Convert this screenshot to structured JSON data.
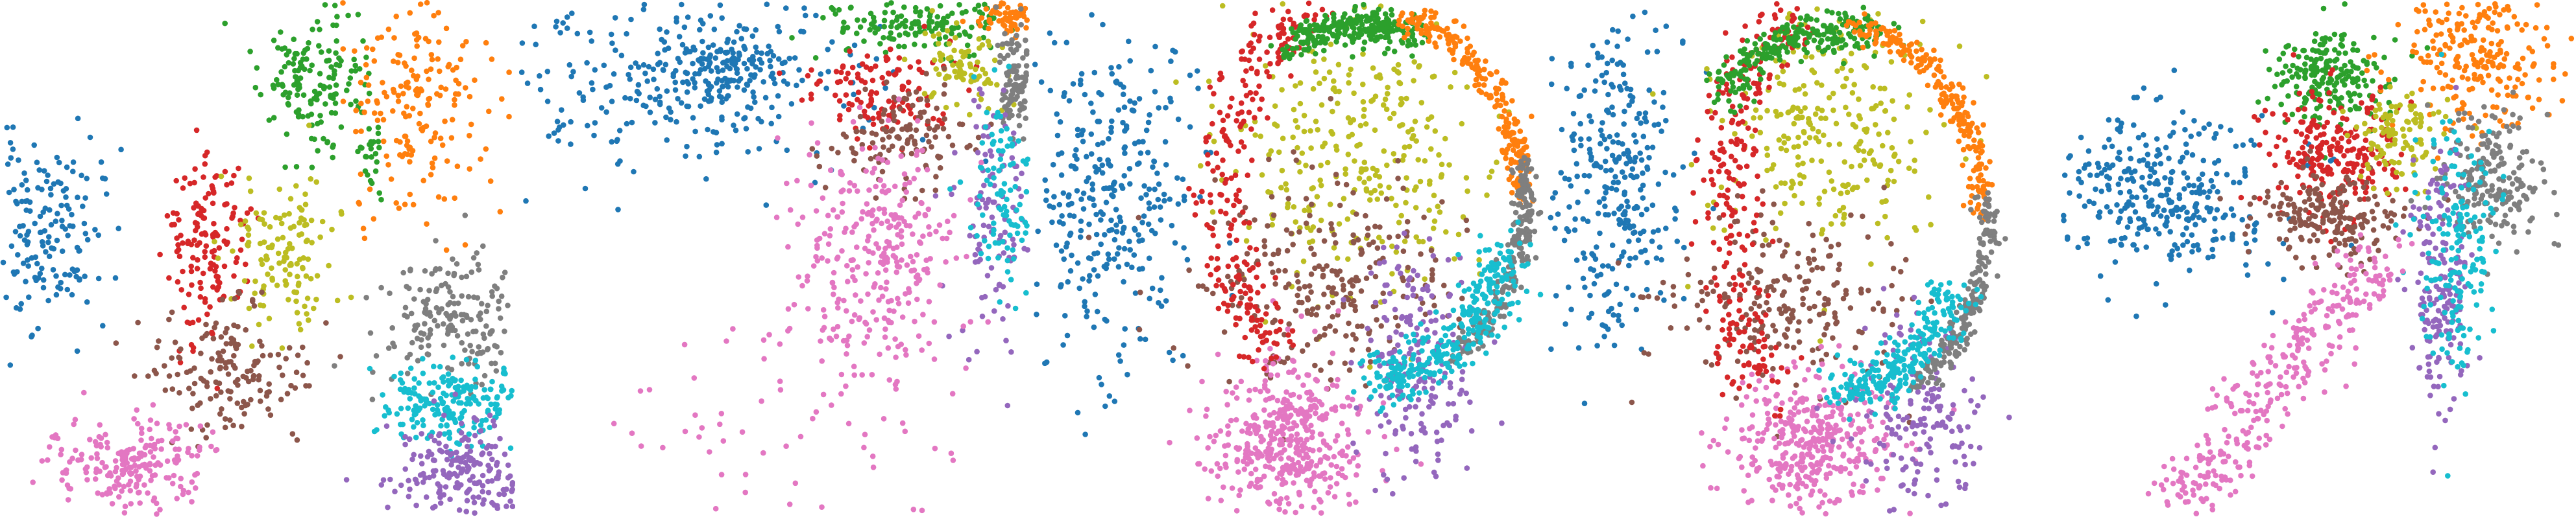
{
  "figure": {
    "background": "#ffffff"
  },
  "palette": {
    "blue": "#1f77b4",
    "orange": "#ff7f0e",
    "green": "#2ca02c",
    "red": "#d62728",
    "purple": "#9467bd",
    "brown": "#8c564b",
    "pink": "#e377c2",
    "gray": "#7f7f7f",
    "olive": "#bcbd22",
    "cyan": "#17becf"
  },
  "chart_data": [
    {
      "type": "scatter",
      "title": "",
      "xlabel": "",
      "ylabel": "",
      "axes": "hidden",
      "grid": false,
      "legend": "none",
      "seed": 11,
      "xlim": [
        0,
        1
      ],
      "ylim": [
        0,
        1
      ],
      "clusters": [
        {
          "color": "blue",
          "n": 160,
          "cx": 0.09,
          "cy": 0.55,
          "sx": 0.05,
          "sy": 0.09
        },
        {
          "color": "green",
          "n": 160,
          "cx": 0.61,
          "cy": 0.84,
          "sx": 0.05,
          "sy": 0.08
        },
        {
          "color": "green",
          "n": 25,
          "cx": 0.72,
          "cy": 0.7,
          "sx": 0.01,
          "sy": 0.04
        },
        {
          "color": "orange",
          "n": 190,
          "cx": 0.81,
          "cy": 0.83,
          "sx": 0.07,
          "sy": 0.12
        },
        {
          "color": "red",
          "n": 150,
          "cx": 0.4,
          "cy": 0.53,
          "sx": 0.04,
          "sy": 0.09
        },
        {
          "color": "olive",
          "n": 130,
          "cx": 0.55,
          "cy": 0.52,
          "sx": 0.05,
          "sy": 0.08
        },
        {
          "color": "brown",
          "n": 160,
          "cx": 0.44,
          "cy": 0.29,
          "sx": 0.08,
          "sy": 0.06
        },
        {
          "color": "pink",
          "n": 220,
          "cx": 0.25,
          "cy": 0.1,
          "sx": 0.08,
          "sy": 0.05
        },
        {
          "color": "gray",
          "n": 180,
          "cx": 0.88,
          "cy": 0.38,
          "sx": 0.07,
          "sy": 0.07
        },
        {
          "color": "cyan",
          "n": 200,
          "cx": 0.88,
          "cy": 0.22,
          "sx": 0.07,
          "sy": 0.04
        },
        {
          "color": "purple",
          "n": 220,
          "cx": 0.9,
          "cy": 0.09,
          "sx": 0.07,
          "sy": 0.05
        }
      ]
    },
    {
      "type": "scatter",
      "title": "",
      "xlabel": "",
      "ylabel": "",
      "axes": "hidden",
      "grid": false,
      "legend": "none",
      "seed": 23,
      "xlim": [
        0,
        1
      ],
      "ylim": [
        0,
        1
      ],
      "clusters": [
        {
          "color": "blue",
          "n": 280,
          "cx": 0.3,
          "cy": 0.85,
          "sx": 0.18,
          "sy": 0.1
        },
        {
          "color": "blue",
          "n": 120,
          "cx": 0.4,
          "cy": 0.86,
          "sx": 0.05,
          "sy": 0.04
        },
        {
          "color": "green",
          "n": 170,
          "cx": 0.78,
          "cy": 0.96,
          "sx": 0.09,
          "sy": 0.03
        },
        {
          "color": "orange",
          "n": 70,
          "cx": 0.96,
          "cy": 0.97,
          "sx": 0.03,
          "sy": 0.015
        },
        {
          "color": "red",
          "n": 120,
          "cx": 0.7,
          "cy": 0.82,
          "sx": 0.07,
          "sy": 0.05
        },
        {
          "color": "olive",
          "n": 80,
          "cx": 0.86,
          "cy": 0.86,
          "sx": 0.04,
          "sy": 0.04
        },
        {
          "color": "brown",
          "n": 120,
          "cx": 0.76,
          "cy": 0.74,
          "sx": 0.08,
          "sy": 0.05
        },
        {
          "color": "gray",
          "n": 110,
          "cx": 0.97,
          "cy": 0.85,
          "sx": 0.02,
          "sy": 0.06
        },
        {
          "color": "purple",
          "n": 110,
          "cx": 0.93,
          "cy": 0.58,
          "sx": 0.04,
          "sy": 0.12
        },
        {
          "color": "cyan",
          "n": 100,
          "cx": 0.95,
          "cy": 0.63,
          "sx": 0.03,
          "sy": 0.1
        },
        {
          "color": "pink",
          "n": 300,
          "cx": 0.7,
          "cy": 0.5,
          "sx": 0.08,
          "sy": 0.12
        },
        {
          "color": "pink",
          "n": 70,
          "cx": 0.55,
          "cy": 0.2,
          "sx": 0.15,
          "sy": 0.12
        }
      ]
    },
    {
      "type": "scatter",
      "title": "",
      "xlabel": "",
      "ylabel": "",
      "axes": "hidden",
      "grid": false,
      "legend": "none",
      "seed": 37,
      "xlim": [
        0,
        1
      ],
      "ylim": [
        0,
        1
      ],
      "clusters": [
        {
          "color": "blue",
          "n": 330,
          "cx": 0.16,
          "cy": 0.63,
          "sx": 0.08,
          "sy": 0.17
        },
        {
          "color": "olive",
          "n": 300,
          "cx": 0.63,
          "cy": 0.7,
          "sx": 0.12,
          "sy": 0.14
        },
        {
          "color": "brown",
          "n": 250,
          "cx": 0.55,
          "cy": 0.47,
          "sx": 0.13,
          "sy": 0.1
        },
        {
          "color": "pink",
          "n": 420,
          "cx": 0.5,
          "cy": 0.15,
          "sx": 0.08,
          "sy": 0.08
        },
        {
          "color": "purple",
          "n": 200,
          "cx": 0.76,
          "cy": 0.3,
          "sx": 0.06,
          "sy": 0.12
        },
        {
          "color": "red",
          "n": 260,
          "cx": 0.4,
          "cy": 0.62,
          "arc": [
            0.65,
            0.62,
            0.28,
            0.38,
            110,
            230
          ],
          "sd": 0.03
        },
        {
          "color": "green",
          "n": 260,
          "cx": 0.55,
          "cy": 0.94,
          "arc": [
            0.65,
            0.62,
            0.3,
            0.33,
            70,
            120
          ],
          "sd": 0.018
        },
        {
          "color": "orange",
          "n": 220,
          "cx": 0.9,
          "cy": 0.85,
          "arc": [
            0.65,
            0.62,
            0.3,
            0.36,
            0,
            75
          ],
          "sd": 0.014
        },
        {
          "color": "gray",
          "n": 220,
          "cx": 0.94,
          "cy": 0.58,
          "arc": [
            0.65,
            0.62,
            0.31,
            0.38,
            -55,
            10
          ],
          "sd": 0.012
        },
        {
          "color": "cyan",
          "n": 300,
          "cx": 0.88,
          "cy": 0.32,
          "arc": [
            0.65,
            0.62,
            0.29,
            0.36,
            -85,
            -20
          ],
          "sd": 0.03
        }
      ]
    },
    {
      "type": "scatter",
      "title": "",
      "xlabel": "",
      "ylabel": "",
      "axes": "hidden",
      "grid": false,
      "legend": "none",
      "seed": 53,
      "xlim": [
        0,
        1
      ],
      "ylim": [
        0,
        1
      ],
      "clusters": [
        {
          "color": "blue",
          "n": 300,
          "cx": 0.13,
          "cy": 0.65,
          "sx": 0.06,
          "sy": 0.15
        },
        {
          "color": "olive",
          "n": 260,
          "cx": 0.55,
          "cy": 0.75,
          "sx": 0.11,
          "sy": 0.12
        },
        {
          "color": "brown",
          "n": 220,
          "cx": 0.48,
          "cy": 0.42,
          "sx": 0.11,
          "sy": 0.09
        },
        {
          "color": "pink",
          "n": 380,
          "cx": 0.52,
          "cy": 0.14,
          "sx": 0.08,
          "sy": 0.07
        },
        {
          "color": "purple",
          "n": 170,
          "cx": 0.73,
          "cy": 0.18,
          "sx": 0.06,
          "sy": 0.1
        },
        {
          "color": "red",
          "n": 260,
          "cx": 0.35,
          "cy": 0.6,
          "arc": [
            0.57,
            0.58,
            0.22,
            0.42,
            115,
            235
          ],
          "sd": 0.03
        },
        {
          "color": "green",
          "n": 240,
          "cx": 0.45,
          "cy": 0.93,
          "arc": [
            0.57,
            0.58,
            0.3,
            0.36,
            75,
            140
          ],
          "sd": 0.02
        },
        {
          "color": "orange",
          "n": 220,
          "cx": 0.85,
          "cy": 0.9,
          "arc": [
            0.57,
            0.58,
            0.28,
            0.37,
            0,
            85
          ],
          "sd": 0.014
        },
        {
          "color": "gray",
          "n": 200,
          "cx": 0.93,
          "cy": 0.52,
          "arc": [
            0.57,
            0.58,
            0.29,
            0.38,
            -60,
            5
          ],
          "sd": 0.012
        },
        {
          "color": "cyan",
          "n": 240,
          "cx": 0.82,
          "cy": 0.3,
          "arc": [
            0.57,
            0.58,
            0.25,
            0.33,
            -90,
            -25
          ],
          "sd": 0.025
        }
      ]
    },
    {
      "type": "scatter",
      "title": "",
      "xlabel": "",
      "ylabel": "",
      "axes": "hidden",
      "grid": false,
      "legend": "none",
      "seed": 71,
      "xlim": [
        0,
        1
      ],
      "ylim": [
        0,
        1
      ],
      "clusters": [
        {
          "color": "blue",
          "n": 320,
          "cx": 0.19,
          "cy": 0.63,
          "sx": 0.11,
          "sy": 0.08
        },
        {
          "color": "green",
          "n": 200,
          "cx": 0.53,
          "cy": 0.85,
          "sx": 0.06,
          "sy": 0.05
        },
        {
          "color": "orange",
          "n": 260,
          "cx": 0.82,
          "cy": 0.9,
          "sx": 0.08,
          "sy": 0.08
        },
        {
          "color": "red",
          "n": 230,
          "cx": 0.53,
          "cy": 0.7,
          "sx": 0.06,
          "sy": 0.06
        },
        {
          "color": "brown",
          "n": 200,
          "cx": 0.53,
          "cy": 0.58,
          "sx": 0.07,
          "sy": 0.04
        },
        {
          "color": "olive",
          "n": 110,
          "cx": 0.66,
          "cy": 0.74,
          "sx": 0.04,
          "sy": 0.04
        },
        {
          "color": "gray",
          "n": 200,
          "cx": 0.84,
          "cy": 0.65,
          "sx": 0.05,
          "sy": 0.06
        },
        {
          "color": "purple",
          "n": 180,
          "cx": 0.74,
          "cy": 0.46,
          "sx": 0.03,
          "sy": 0.12
        },
        {
          "color": "cyan",
          "n": 170,
          "cx": 0.77,
          "cy": 0.52,
          "sx": 0.04,
          "sy": 0.12
        },
        {
          "color": "pink",
          "n": 320,
          "cx": 0.52,
          "cy": 0.28,
          "line": [
            0.22,
            0.02,
            0.62,
            0.5
          ],
          "sd": 0.035
        }
      ]
    }
  ]
}
